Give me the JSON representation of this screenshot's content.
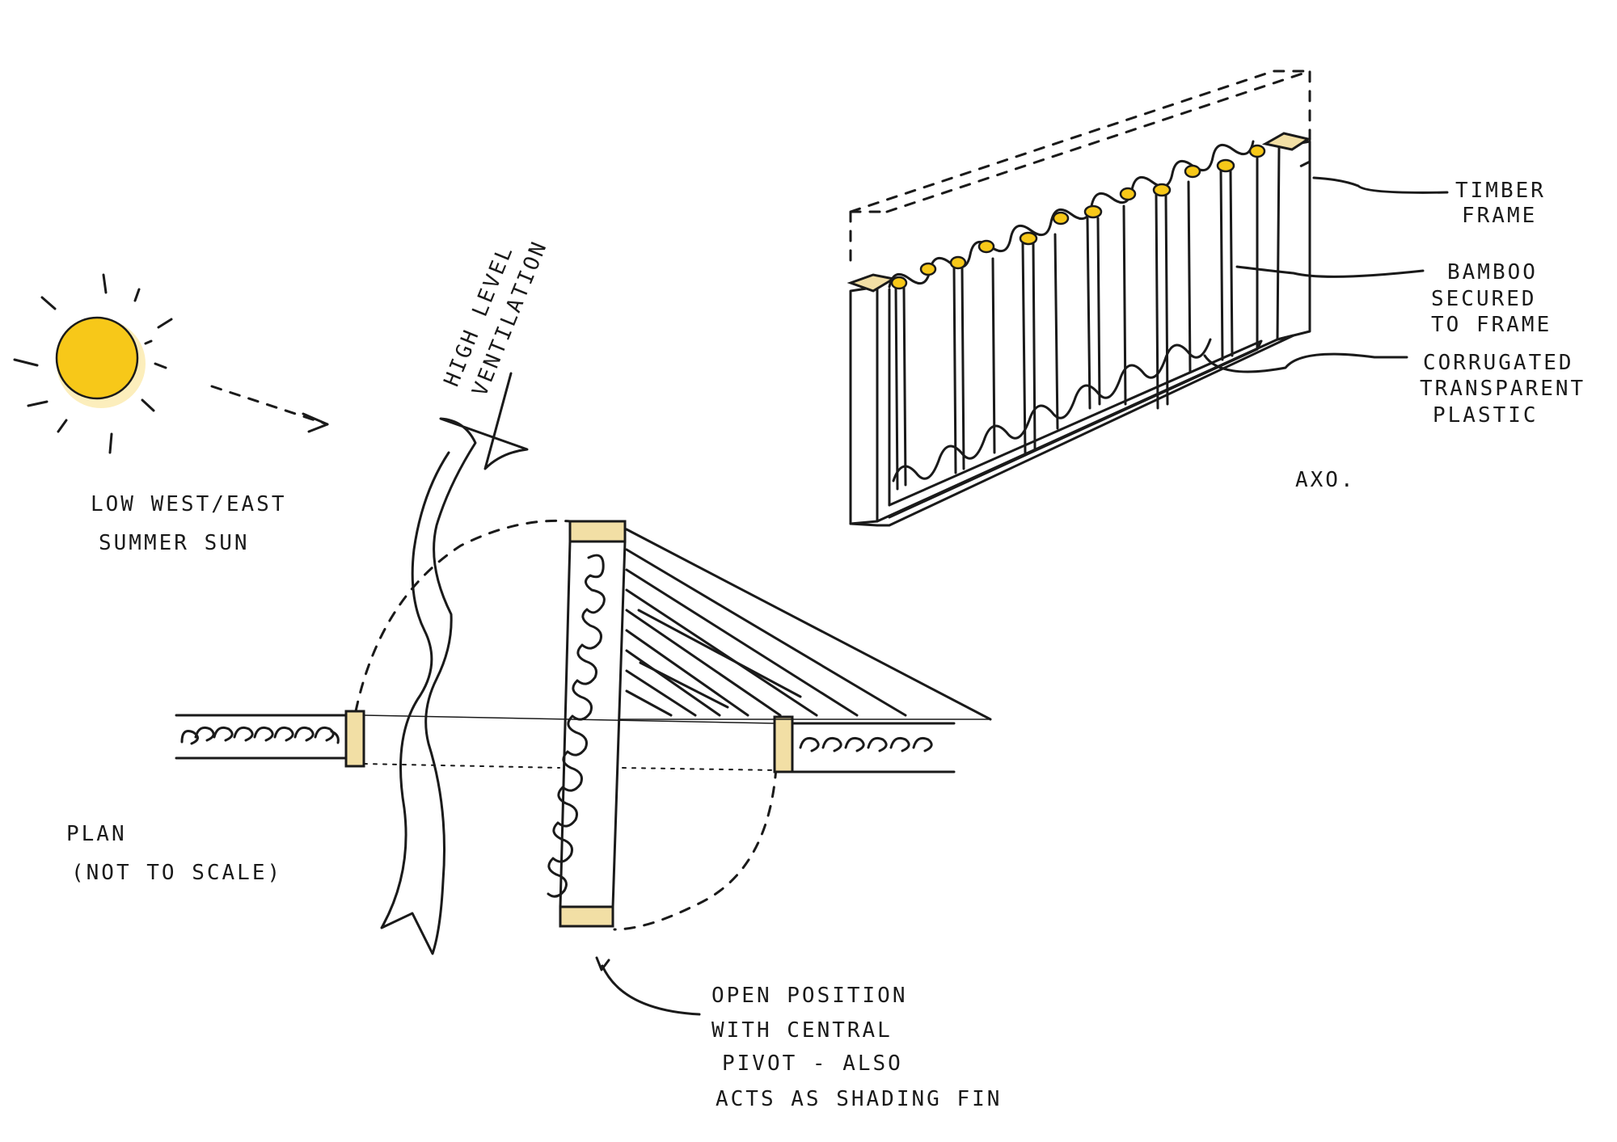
{
  "labels": {
    "sun_caption": [
      "LOW WEST/EAST",
      "SUMMER SUN"
    ],
    "ventilation": [
      "HIGH LEVEL",
      "VENTILATION"
    ],
    "plan": [
      "PLAN",
      "(NOT TO SCALE)"
    ],
    "open_position": [
      "OPEN POSITION",
      "WITH CENTRAL",
      "PIVOT - ALSO",
      "ACTS AS SHADING FIN"
    ],
    "timber_frame": [
      "TIMBER",
      "FRAME"
    ],
    "bamboo": [
      "BAMBOO",
      "SECURED",
      "TO FRAME"
    ],
    "corrugated": [
      "CORRUGATED",
      "TRANSPARENT",
      "PLASTIC"
    ],
    "axo": "AXO."
  },
  "colors": {
    "sun": "#f7c819",
    "timber": "#f2dfa5",
    "ink": "#1a1a1a",
    "paper": "#ffffff"
  }
}
